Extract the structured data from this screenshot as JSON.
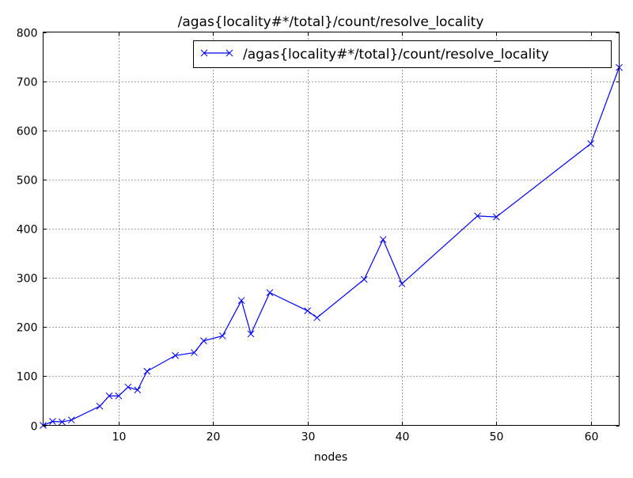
{
  "chart_data": {
    "type": "line",
    "title": "/agas{locality#*/total}/count/resolve_locality",
    "xlabel": "nodes",
    "ylabel": "",
    "xlim": [
      2,
      63
    ],
    "ylim": [
      0,
      800
    ],
    "xticks": [
      10,
      20,
      30,
      40,
      50,
      60
    ],
    "yticks": [
      0,
      100,
      200,
      300,
      400,
      500,
      600,
      700,
      800
    ],
    "grid": true,
    "grid_style": "dotted",
    "legend_position": "upper right",
    "series": [
      {
        "name": "/agas{locality#*/total}/count/resolve_locality",
        "color": "#0000ff",
        "marker": "x",
        "x": [
          2,
          3,
          4,
          5,
          8,
          9,
          10,
          11,
          12,
          13,
          16,
          18,
          19,
          21,
          23,
          24,
          26,
          30,
          31,
          36,
          38,
          40,
          48,
          50,
          60,
          63
        ],
        "values": [
          0,
          8,
          7,
          11,
          39,
          60,
          60,
          78,
          72,
          110,
          142,
          148,
          172,
          182,
          254,
          186,
          270,
          233,
          219,
          297,
          378,
          288,
          426,
          424,
          573,
          728
        ]
      }
    ]
  },
  "colors": {
    "series": "#0000ff",
    "axis": "#000000",
    "grid": "#000000",
    "background": "#ffffff"
  }
}
